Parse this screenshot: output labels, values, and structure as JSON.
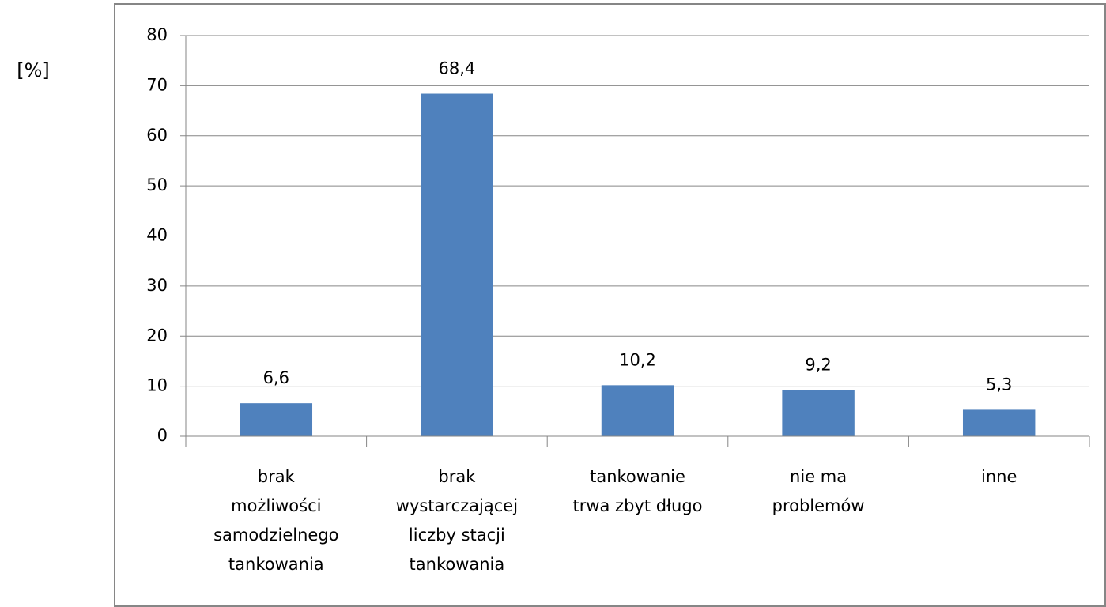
{
  "chart_data": {
    "type": "bar",
    "y_label": "[%]",
    "categories": [
      "brak\nmożliwości\nsamodzielnego\ntankowania",
      "brak\nwystarczającej\nliczby stacji\ntankowania",
      "tankowanie\ntrwa zbyt długo",
      "nie ma\nproblemów",
      "inne"
    ],
    "values": [
      6.6,
      68.4,
      10.2,
      9.2,
      5.3
    ],
    "value_labels": [
      "6,6",
      "68,4",
      "10,2",
      "9,2",
      "5,3"
    ],
    "color": "#4f81bd",
    "ylim": [
      0,
      80
    ],
    "yticks": [
      0,
      10,
      20,
      30,
      40,
      50,
      60,
      70,
      80
    ],
    "grid": true
  }
}
